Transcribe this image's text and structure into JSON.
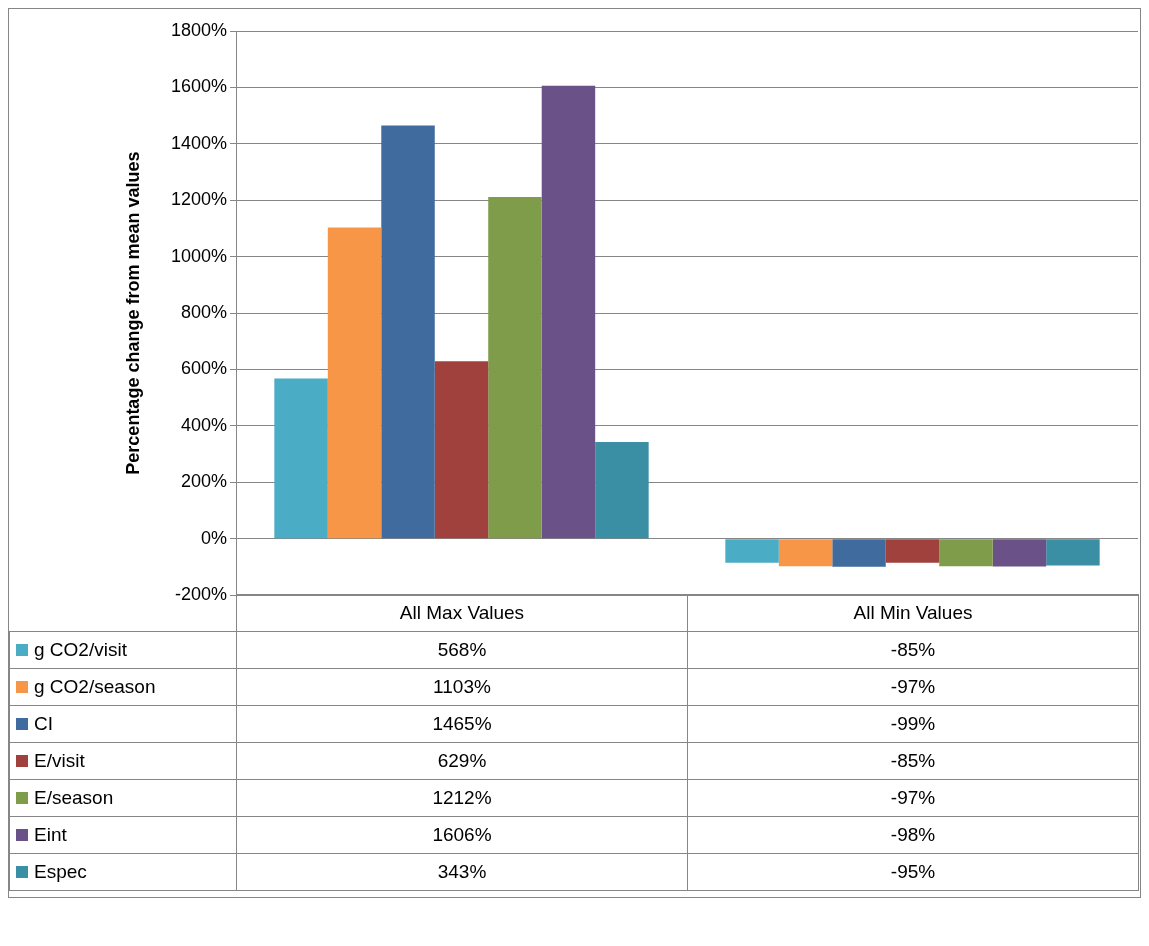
{
  "chart_data": {
    "type": "bar",
    "categories": [
      "All Max Values",
      "All Min Values"
    ],
    "ylabel": "Percentage change from mean values",
    "ylim": [
      -200,
      1800
    ],
    "yticks": [
      {
        "value": -200,
        "label": "-200%"
      },
      {
        "value": 0,
        "label": "0%"
      },
      {
        "value": 200,
        "label": "200%"
      },
      {
        "value": 400,
        "label": "400%"
      },
      {
        "value": 600,
        "label": "600%"
      },
      {
        "value": 800,
        "label": "800%"
      },
      {
        "value": 1000,
        "label": "1000%"
      },
      {
        "value": 1200,
        "label": "1200%"
      },
      {
        "value": 1400,
        "label": "1400%"
      },
      {
        "value": 1600,
        "label": "1600%"
      },
      {
        "value": 1800,
        "label": "1800%"
      }
    ],
    "grid": "y",
    "legend": "bottom",
    "series": [
      {
        "name": "g CO2/visit",
        "color": "#4bacc6",
        "values": [
          568,
          -85
        ],
        "value_labels": [
          "568%",
          "-85%"
        ]
      },
      {
        "name": "g CO2/season",
        "color": "#f79646",
        "values": [
          1103,
          -97
        ],
        "value_labels": [
          "1103%",
          "-97%"
        ]
      },
      {
        "name": "CI",
        "color": "#3f6b9e",
        "values": [
          1465,
          -99
        ],
        "value_labels": [
          "1465%",
          "-99%"
        ]
      },
      {
        "name": "E/visit",
        "color": "#a0413e",
        "values": [
          629,
          -85
        ],
        "value_labels": [
          "629%",
          "-85%"
        ]
      },
      {
        "name": "E/season",
        "color": "#7f9c4a",
        "values": [
          1212,
          -97
        ],
        "value_labels": [
          "1212%",
          "-97%"
        ]
      },
      {
        "name": "Eint",
        "color": "#6a5188",
        "values": [
          1606,
          -98
        ],
        "value_labels": [
          "1606%",
          "-98%"
        ]
      },
      {
        "name": "Espec",
        "color": "#3b8fa5",
        "values": [
          343,
          -95
        ],
        "value_labels": [
          "343%",
          "-95%"
        ]
      }
    ]
  }
}
